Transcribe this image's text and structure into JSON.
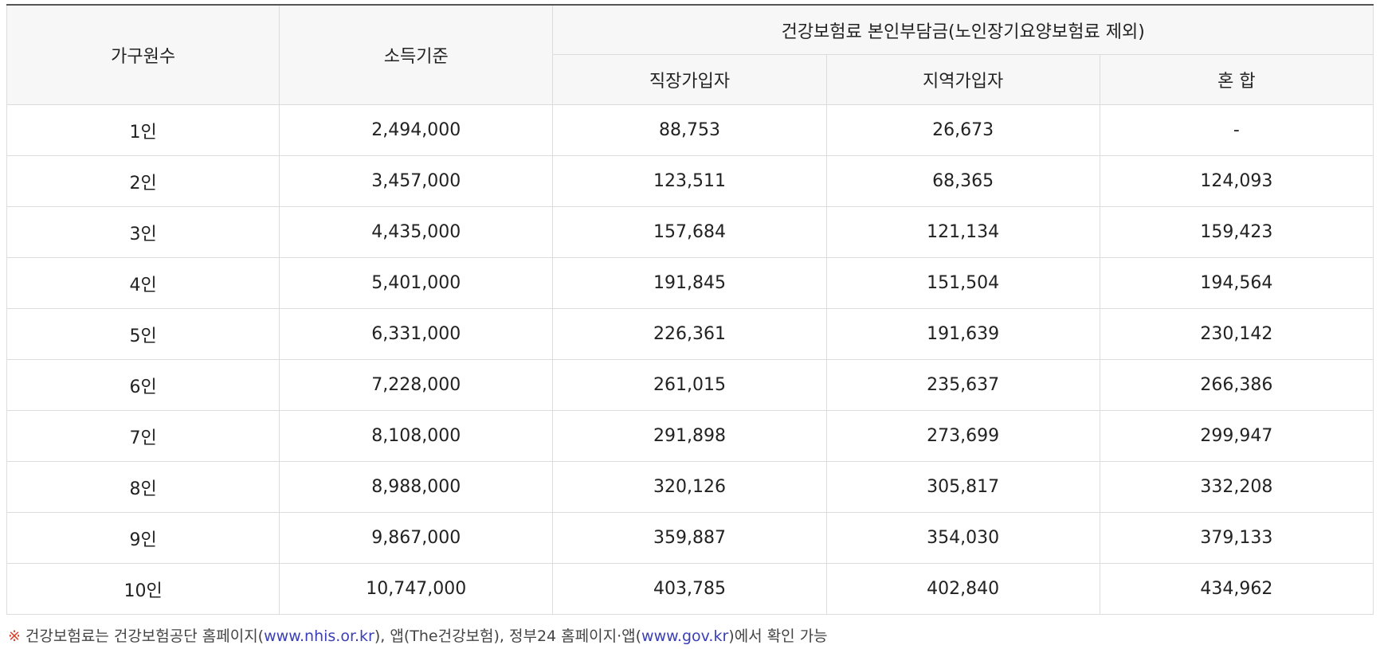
{
  "table": {
    "header": {
      "household": "가구원수",
      "income": "소득기준",
      "premium_group": "건강보험료 본인부담금(노인장기요양보험료 제외)",
      "employee": "직장가입자",
      "regional": "지역가입자",
      "mixed": "혼 합"
    },
    "rows": [
      {
        "household": "1인",
        "income": "2,494,000",
        "employee": "88,753",
        "regional": "26,673",
        "mixed": "-"
      },
      {
        "household": "2인",
        "income": "3,457,000",
        "employee": "123,511",
        "regional": "68,365",
        "mixed": "124,093"
      },
      {
        "household": "3인",
        "income": "4,435,000",
        "employee": "157,684",
        "regional": "121,134",
        "mixed": "159,423"
      },
      {
        "household": "4인",
        "income": "5,401,000",
        "employee": "191,845",
        "regional": "151,504",
        "mixed": "194,564"
      },
      {
        "household": "5인",
        "income": "6,331,000",
        "employee": "226,361",
        "regional": "191,639",
        "mixed": "230,142"
      },
      {
        "household": "6인",
        "income": "7,228,000",
        "employee": "261,015",
        "regional": "235,637",
        "mixed": "266,386"
      },
      {
        "household": "7인",
        "income": "8,108,000",
        "employee": "291,898",
        "regional": "273,699",
        "mixed": "299,947"
      },
      {
        "household": "8인",
        "income": "8,988,000",
        "employee": "320,126",
        "regional": "305,817",
        "mixed": "332,208"
      },
      {
        "household": "9인",
        "income": "9,867,000",
        "employee": "359,887",
        "regional": "354,030",
        "mixed": "379,133"
      },
      {
        "household": "10인",
        "income": "10,747,000",
        "employee": "403,785",
        "regional": "402,840",
        "mixed": "434,962"
      }
    ]
  },
  "note": {
    "mark": "※",
    "text1": "건강보험료는 건강보험공단 홈페이지(",
    "link1": "www.nhis.or.kr",
    "text2": "), 앱(The건강보험), 정부24 홈페이지·앱(",
    "link2": "www.gov.kr",
    "text3": ")에서 확인 가능"
  },
  "colors": {
    "mark": "#d9432c",
    "link": "#3a3fb5",
    "header_bg": "#f7f7f7",
    "border": "#dcdcdc"
  }
}
